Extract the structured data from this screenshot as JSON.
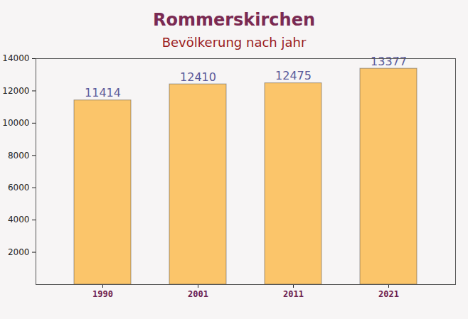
{
  "chart_data": {
    "type": "bar",
    "title": "Rommerskirchen",
    "subtitle": "Bevölkerung nach jahr",
    "categories": [
      "1990",
      "2001",
      "2011",
      "2021"
    ],
    "values": [
      11414,
      12410,
      12475,
      13377
    ],
    "color": "#fbc56a",
    "ylim": [
      0,
      14000
    ],
    "yticks": [
      2000,
      4000,
      6000,
      8000,
      10000,
      12000,
      14000
    ],
    "grid": false,
    "data_labels": true
  }
}
